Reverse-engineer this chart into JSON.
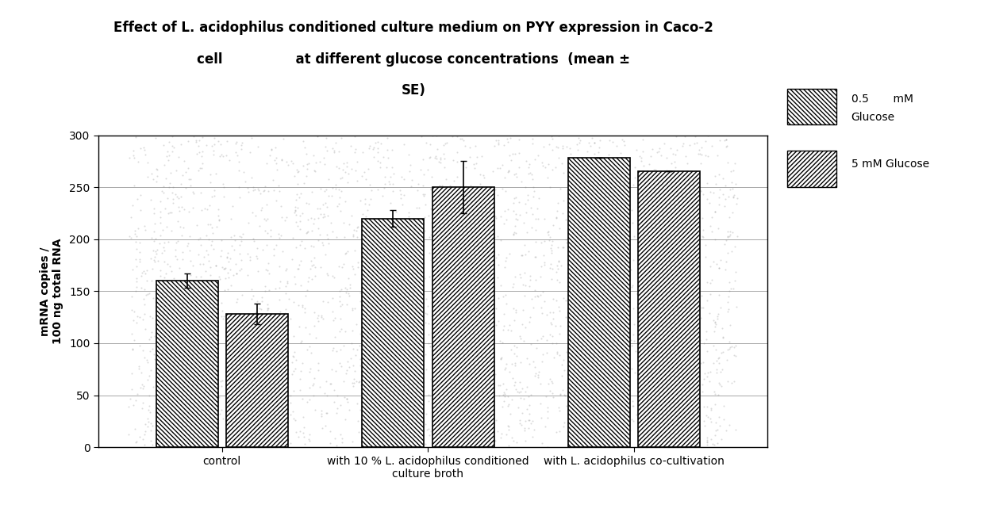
{
  "title": "Effect of L. acidophilus conditioned culture medium on PYY expression in Caco-2\ncell                at different glucose concentrations  (mean ±\nSE)",
  "ylabel": "mRNA copies /\n100 ng total RNA",
  "categories": [
    "control",
    "with 10 % L. acidophilus conditioned\nculture broth",
    "with L. acidophilus co-cultivation"
  ],
  "values_05": [
    160,
    220,
    278
  ],
  "values_5": [
    128,
    250,
    265
  ],
  "errors_05": [
    7,
    8,
    0
  ],
  "errors_5": [
    10,
    25,
    0
  ],
  "ylim": [
    0,
    300
  ],
  "yticks": [
    0,
    50,
    100,
    150,
    200,
    250,
    300
  ],
  "legend_label_05": "0.5       mM\nGlucose",
  "legend_label_5": "5 mM Glucose",
  "bar_width": 0.3,
  "bar_gap": 0.04,
  "background_color": "#ffffff",
  "plot_bg_color": "#ffffff",
  "title_fontsize": 12,
  "label_fontsize": 10,
  "tick_fontsize": 10,
  "legend_fontsize": 10
}
